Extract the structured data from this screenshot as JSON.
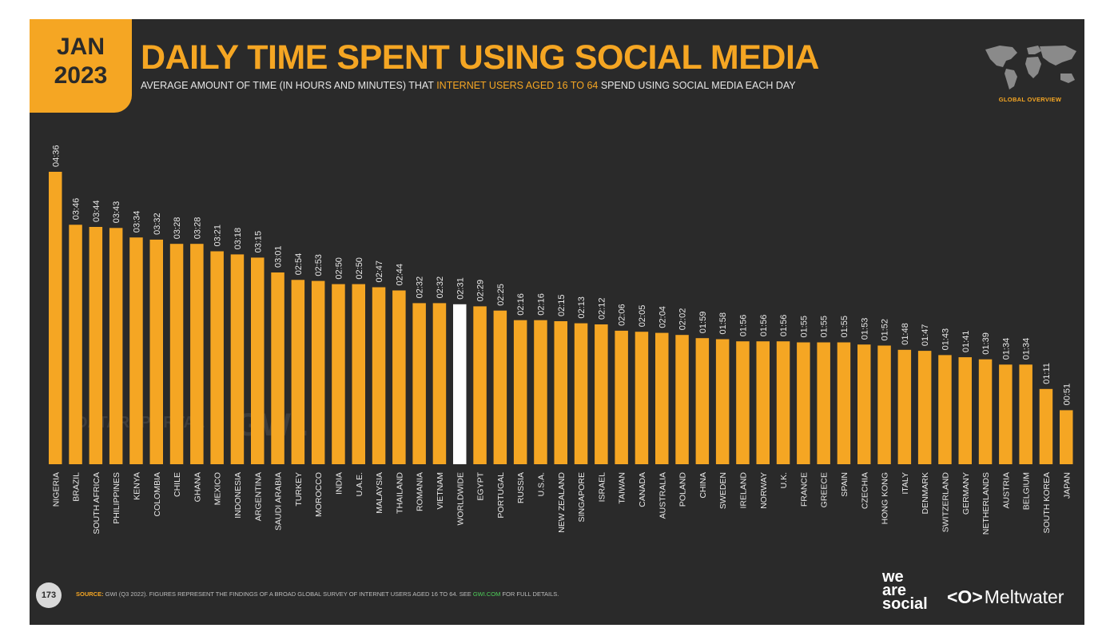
{
  "header": {
    "month": "JAN",
    "year": "2023",
    "title": "DAILY TIME SPENT USING SOCIAL MEDIA",
    "subtitle_prefix": "AVERAGE AMOUNT OF TIME (IN HOURS AND MINUTES) THAT ",
    "subtitle_highlight": "INTERNET USERS AGED 16 TO 64",
    "subtitle_suffix": " SPEND USING SOCIAL MEDIA EACH DAY"
  },
  "map_label": "GLOBAL OVERVIEW",
  "watermarks": {
    "datareportal": "DATAREPORTAL",
    "gwi": "GWI."
  },
  "footer": {
    "page_number": "173",
    "source_label": "SOURCE:",
    "source_text": " GWI (Q3 2022). FIGURES REPRESENT THE FINDINGS OF A BROAD GLOBAL SURVEY OF INTERNET USERS AGED 16 TO 64. SEE ",
    "source_link": "GWI.COM",
    "source_tail": " FOR FULL DETAILS.",
    "brand_we": "we",
    "brand_are": "are",
    "brand_social": "social",
    "brand_mw_logo": "<O>",
    "brand_mw": "Meltwater"
  },
  "colors": {
    "bar": "#f5a623",
    "highlight_bar": "#ffffff",
    "background": "#2a2a2a",
    "accent": "#f5a623"
  },
  "chart_data": {
    "type": "bar",
    "title": "DAILY TIME SPENT USING SOCIAL MEDIA",
    "unit": "hours:minutes",
    "highlight_category": "WORLDWIDE",
    "categories": [
      "NIGERIA",
      "BRAZIL",
      "SOUTH AFRICA",
      "PHILIPPINES",
      "KENYA",
      "COLOMBIA",
      "CHILE",
      "GHANA",
      "MEXICO",
      "INDONESIA",
      "ARGENTINA",
      "SAUDI ARABIA",
      "TURKEY",
      "MOROCCO",
      "INDIA",
      "U.A.E.",
      "MALAYSIA",
      "THAILAND",
      "ROMANIA",
      "VIETNAM",
      "WORLDWIDE",
      "EGYPT",
      "PORTUGAL",
      "RUSSIA",
      "U.S.A.",
      "NEW ZEALAND",
      "SINGAPORE",
      "ISRAEL",
      "TAIWAN",
      "CANADA",
      "AUSTRALIA",
      "POLAND",
      "CHINA",
      "SWEDEN",
      "IRELAND",
      "NORWAY",
      "U.K.",
      "FRANCE",
      "GREECE",
      "SPAIN",
      "CZECHIA",
      "HONG KONG",
      "ITALY",
      "DENMARK",
      "SWITZERLAND",
      "GERMANY",
      "NETHERLANDS",
      "AUSTRIA",
      "BELGIUM",
      "SOUTH KOREA",
      "JAPAN"
    ],
    "labels": [
      "04:36",
      "03:46",
      "03:44",
      "03:43",
      "03:34",
      "03:32",
      "03:28",
      "03:28",
      "03:21",
      "03:18",
      "03:15",
      "03:01",
      "02:54",
      "02:53",
      "02:50",
      "02:50",
      "02:47",
      "02:44",
      "02:32",
      "02:32",
      "02:31",
      "02:29",
      "02:25",
      "02:16",
      "02:16",
      "02:15",
      "02:13",
      "02:12",
      "02:06",
      "02:05",
      "02:04",
      "02:02",
      "01:59",
      "01:58",
      "01:56",
      "01:56",
      "01:56",
      "01:55",
      "01:55",
      "01:55",
      "01:53",
      "01:52",
      "01:48",
      "01:47",
      "01:43",
      "01:41",
      "01:39",
      "01:34",
      "01:34",
      "01:11",
      "00:51"
    ],
    "values_minutes": [
      276,
      226,
      224,
      223,
      214,
      212,
      208,
      208,
      201,
      198,
      195,
      181,
      174,
      173,
      170,
      170,
      167,
      164,
      152,
      152,
      151,
      149,
      145,
      136,
      136,
      135,
      133,
      132,
      126,
      125,
      124,
      122,
      119,
      118,
      116,
      116,
      116,
      115,
      115,
      115,
      113,
      112,
      108,
      107,
      103,
      101,
      99,
      94,
      94,
      71,
      51
    ]
  }
}
